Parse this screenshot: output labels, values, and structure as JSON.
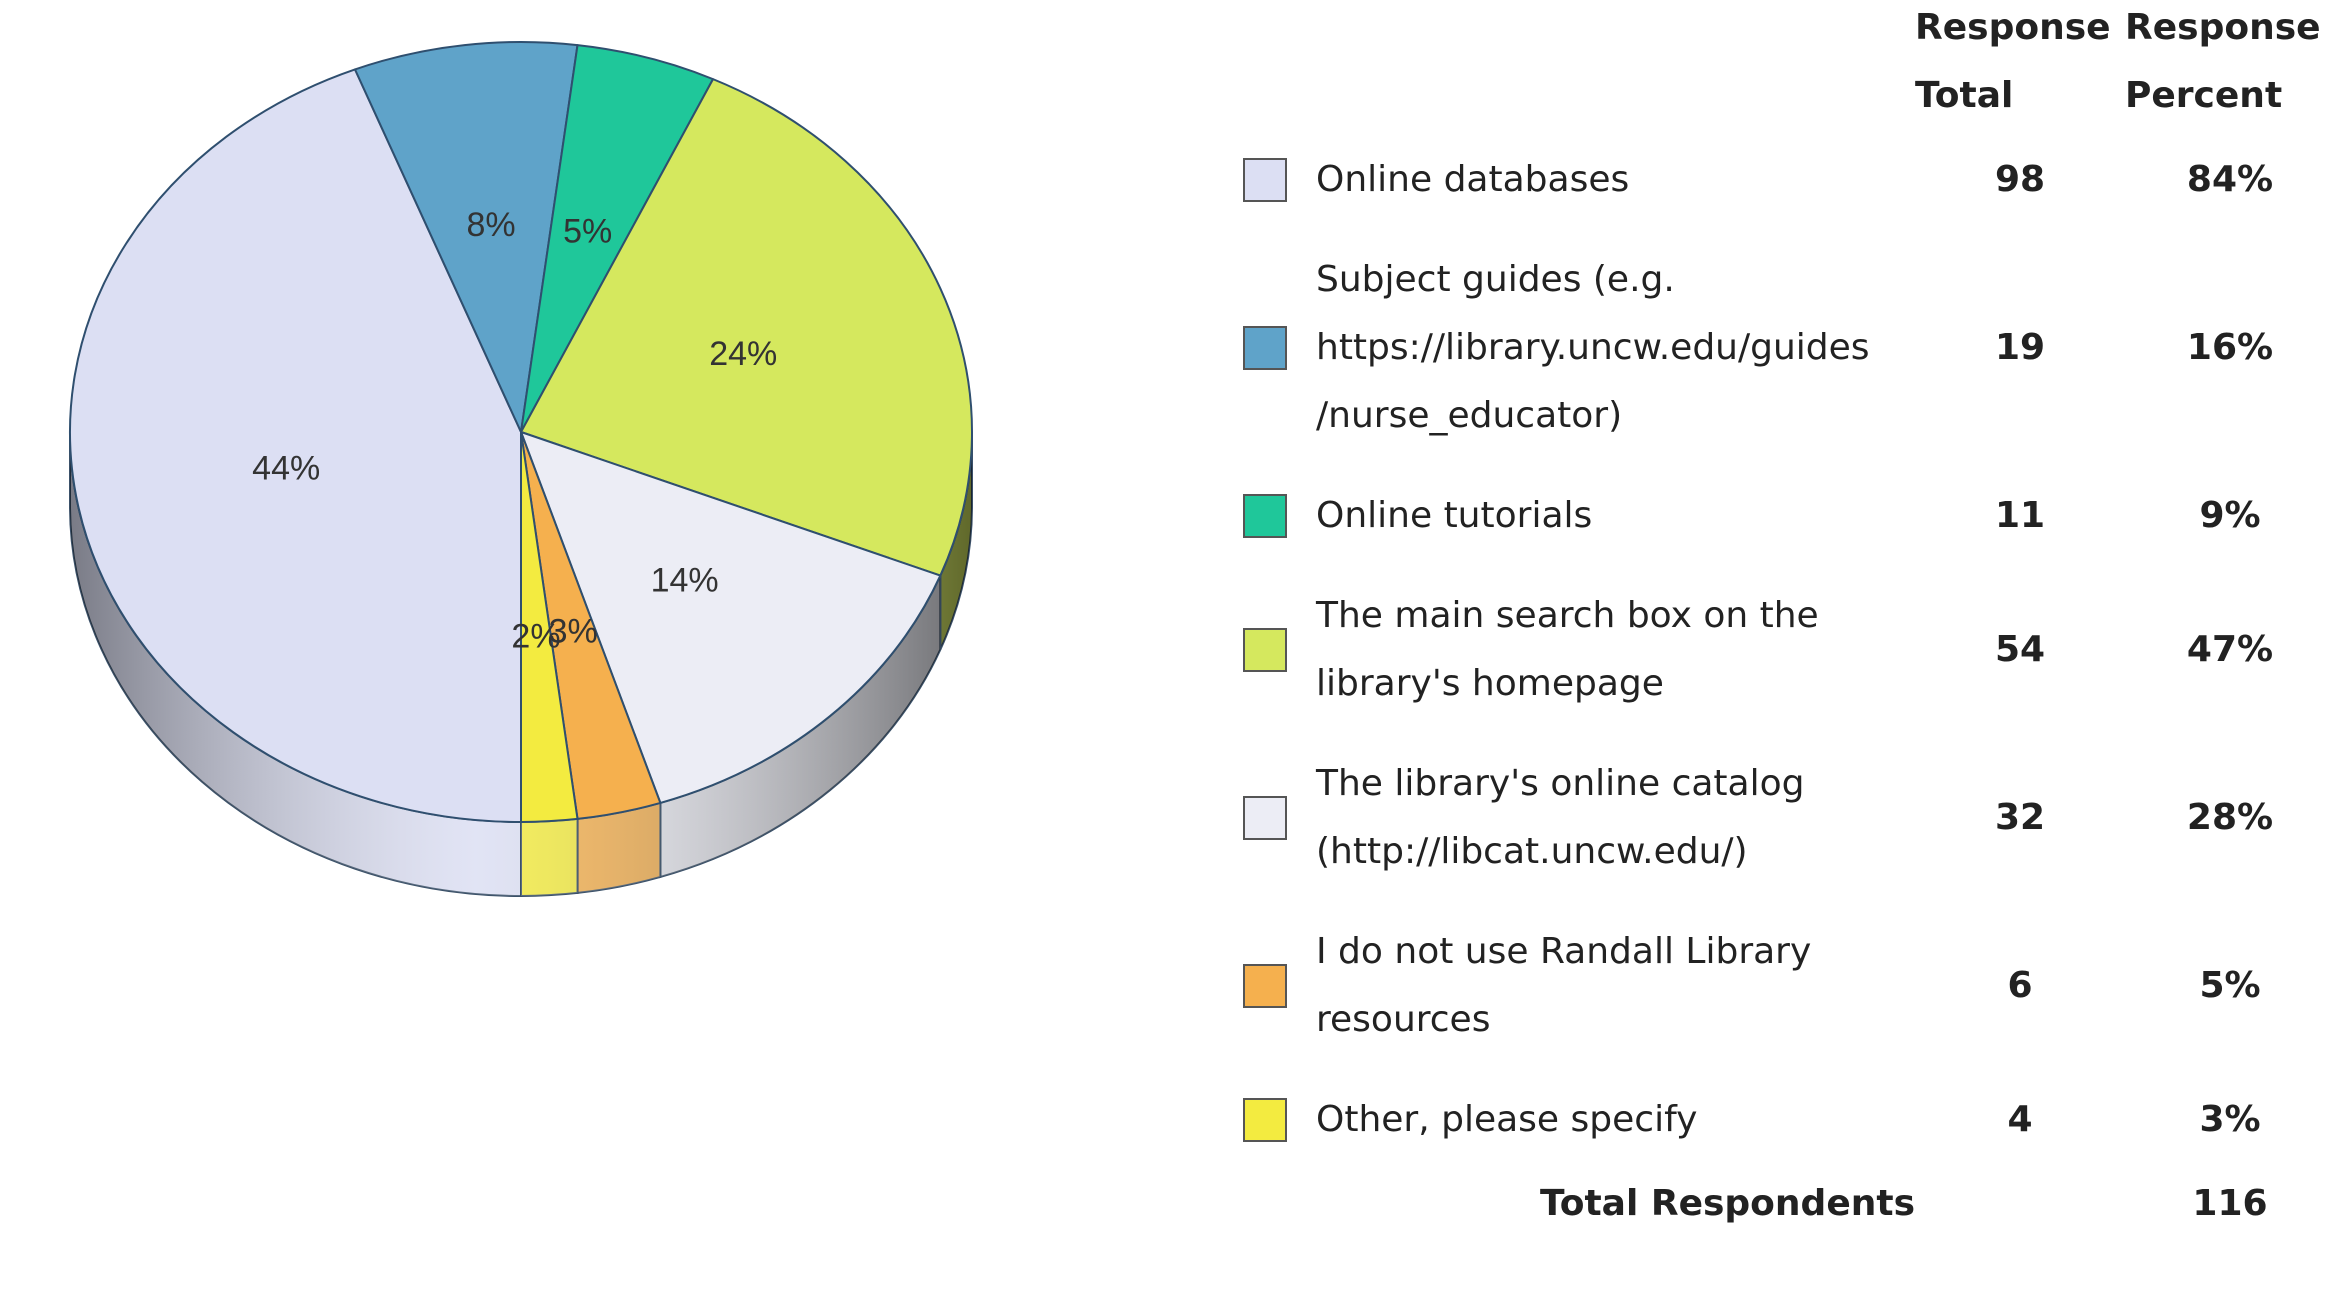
{
  "chart_data": {
    "type": "pie",
    "categories": [
      "Online databases",
      "Subject guides (e.g. https://library.uncw.edu/guides/nurse_educator)",
      "Online tutorials",
      "The main search box on the library's homepage",
      "The library's online catalog (http://libcat.uncw.edu/)",
      "I do not use Randall Library resources",
      "Other, please specify"
    ],
    "values": [
      44,
      8,
      5,
      24,
      14,
      3,
      2
    ],
    "colors": [
      "#dcdff3",
      "#5fa3c9",
      "#1fc79a",
      "#d5e85e",
      "#ecedf5",
      "#f5b04e",
      "#f3eb40"
    ]
  },
  "table": {
    "header": [
      "Response Total",
      "Response Percent"
    ],
    "rows": [
      {
        "total": 98,
        "percent": "84%"
      },
      {
        "total": 19,
        "percent": "16%"
      },
      {
        "total": 11,
        "percent": "9%"
      },
      {
        "total": 54,
        "percent": "47%"
      },
      {
        "total": 32,
        "percent": "28%"
      },
      {
        "total": 6,
        "percent": "5%"
      },
      {
        "total": 4,
        "percent": "3%"
      }
    ],
    "footer": {
      "label": "Total Respondents",
      "value": 116
    }
  }
}
